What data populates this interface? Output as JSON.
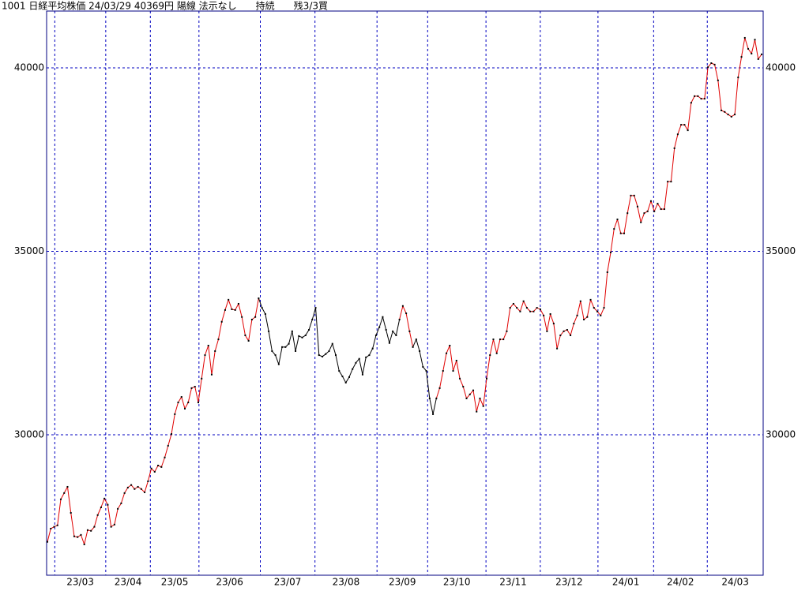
{
  "chart_data": {
    "type": "line",
    "title": "1001 日経平均株価 24/03/29 40369円 陽線 法示なし　　持続　　残3/3買",
    "values": [
      27080,
      27440,
      27490,
      27530,
      28240,
      28410,
      28580,
      27870,
      27230,
      27210,
      27270,
      27010,
      27400,
      27380,
      27490,
      27810,
      28020,
      28260,
      28090,
      27490,
      27550,
      27980,
      28130,
      28410,
      28560,
      28630,
      28520,
      28580,
      28520,
      28430,
      28730,
      29080,
      28990,
      29160,
      29120,
      29380,
      29700,
      30020,
      30560,
      30880,
      31030,
      30710,
      30880,
      31270,
      31310,
      30880,
      31530,
      32170,
      32430,
      31640,
      32280,
      32600,
      33080,
      33400,
      33680,
      33420,
      33400,
      33570,
      33210,
      32710,
      32560,
      33140,
      33210,
      33720,
      33460,
      33290,
      32820,
      32280,
      32170,
      31920,
      32390,
      32390,
      32480,
      32820,
      32280,
      32690,
      32650,
      32710,
      32860,
      33140,
      33460,
      32170,
      32130,
      32200,
      32280,
      32480,
      32170,
      31740,
      31590,
      31420,
      31570,
      31790,
      31960,
      32070,
      31640,
      32110,
      32170,
      32350,
      32710,
      32930,
      33210,
      32860,
      32500,
      32820,
      32710,
      33140,
      33510,
      33310,
      32820,
      32390,
      32600,
      32280,
      31850,
      31740,
      30990,
      30560,
      30990,
      31270,
      31740,
      32220,
      32430,
      31740,
      32020,
      31530,
      31310,
      30990,
      31100,
      31210,
      30630,
      30990,
      30780,
      31530,
      32170,
      32600,
      32220,
      32600,
      32600,
      32820,
      33460,
      33570,
      33460,
      33360,
      33640,
      33460,
      33360,
      33360,
      33460,
      33420,
      33250,
      32820,
      33290,
      33030,
      32350,
      32710,
      32820,
      32860,
      32710,
      33030,
      33250,
      33640,
      33140,
      33210,
      33680,
      33460,
      33360,
      33250,
      33460,
      34430,
      34970,
      35610,
      35870,
      35490,
      35490,
      36040,
      36520,
      36520,
      36220,
      35790,
      36040,
      36090,
      36370,
      36090,
      36300,
      36150,
      36150,
      36900,
      36900,
      37810,
      38190,
      38450,
      38450,
      38300,
      39050,
      39230,
      39230,
      39160,
      39160,
      40020,
      40130,
      40090,
      39660,
      38840,
      38800,
      38730,
      38670,
      38730,
      39740,
      40300,
      40820,
      40520,
      40390,
      40770,
      40240,
      40370
    ],
    "segments": [
      {
        "start": 0,
        "end": 63,
        "color": "#e00000"
      },
      {
        "start": 63,
        "end": 105,
        "color": "#000000"
      },
      {
        "start": 105,
        "end": 109,
        "color": "#e00000"
      },
      {
        "start": 109,
        "end": 116,
        "color": "#000000"
      },
      {
        "start": 116,
        "end": 213,
        "color": "#e00000"
      }
    ],
    "xlim": [
      0,
      213
    ],
    "month_boundaries": [
      2.2,
      17.4,
      30.7,
      45.2,
      63.5,
      79.8,
      98.3,
      113.4,
      130.8,
      147,
      164.2,
      180.8,
      196.8
    ],
    "month_labels": [
      "23/03",
      "23/04",
      "23/05",
      "23/06",
      "23/07",
      "23/08",
      "23/09",
      "23/10",
      "23/11",
      "23/12",
      "24/01",
      "24/02",
      "24/03"
    ],
    "ylim": [
      26170,
      41550
    ],
    "yticks": [
      30000,
      35000,
      40000
    ],
    "grid": true,
    "frame_color": "#000080",
    "grid_color": "#0000c0"
  }
}
